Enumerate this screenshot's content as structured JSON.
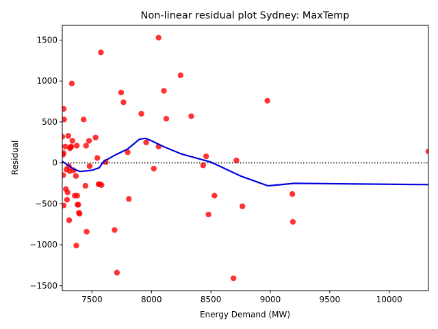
{
  "chart_data": {
    "type": "scatter",
    "title": "Non-linear residual plot Sydney: MaxTemp",
    "xlabel": "Energy Demand (MW)",
    "ylabel": "Residual",
    "xlim": [
      7250,
      10330
    ],
    "ylim": [
      -1560,
      1680
    ],
    "xticks": [
      7500,
      8000,
      8500,
      9000,
      9500,
      10000
    ],
    "yticks": [
      -1500,
      -1000,
      -500,
      0,
      500,
      1000,
      1500
    ],
    "grid": false,
    "legend": "none",
    "colors": {
      "points": "#ff0000",
      "fit_line": "#0000dd",
      "zero_line": "#000000"
    },
    "points": [
      [
        7250,
        320
      ],
      [
        7255,
        100
      ],
      [
        7260,
        120
      ],
      [
        7262,
        660
      ],
      [
        7265,
        530
      ],
      [
        7258,
        -150
      ],
      [
        7262,
        -520
      ],
      [
        7275,
        200
      ],
      [
        7280,
        -320
      ],
      [
        7285,
        -80
      ],
      [
        7290,
        -450
      ],
      [
        7295,
        -360
      ],
      [
        7300,
        330
      ],
      [
        7305,
        -40
      ],
      [
        7308,
        -700
      ],
      [
        7312,
        -100
      ],
      [
        7315,
        180
      ],
      [
        7320,
        190
      ],
      [
        7325,
        200
      ],
      [
        7330,
        970
      ],
      [
        7335,
        270
      ],
      [
        7345,
        -90
      ],
      [
        7355,
        -400
      ],
      [
        7365,
        -160
      ],
      [
        7368,
        -1010
      ],
      [
        7372,
        210
      ],
      [
        7375,
        -400
      ],
      [
        7378,
        -510
      ],
      [
        7385,
        -510
      ],
      [
        7390,
        -610
      ],
      [
        7395,
        -620
      ],
      [
        7430,
        530
      ],
      [
        7445,
        -280
      ],
      [
        7450,
        210
      ],
      [
        7455,
        -840
      ],
      [
        7475,
        270
      ],
      [
        7480,
        -40
      ],
      [
        7530,
        310
      ],
      [
        7545,
        60
      ],
      [
        7555,
        -260
      ],
      [
        7565,
        -260
      ],
      [
        7575,
        1350
      ],
      [
        7580,
        -270
      ],
      [
        7615,
        10
      ],
      [
        7690,
        -820
      ],
      [
        7710,
        -1340
      ],
      [
        7745,
        860
      ],
      [
        7765,
        740
      ],
      [
        7800,
        130
      ],
      [
        7810,
        -440
      ],
      [
        7915,
        600
      ],
      [
        7955,
        250
      ],
      [
        8020,
        -70
      ],
      [
        8060,
        200
      ],
      [
        8060,
        1530
      ],
      [
        8105,
        880
      ],
      [
        8125,
        540
      ],
      [
        8245,
        1070
      ],
      [
        8335,
        570
      ],
      [
        8435,
        -30
      ],
      [
        8460,
        80
      ],
      [
        8480,
        -630
      ],
      [
        8530,
        -400
      ],
      [
        8690,
        -1410
      ],
      [
        8715,
        30
      ],
      [
        8765,
        -530
      ],
      [
        8975,
        760
      ],
      [
        9185,
        -380
      ],
      [
        9190,
        -720
      ],
      [
        10330,
        140
      ]
    ],
    "fit_line": [
      [
        7250,
        20
      ],
      [
        7300,
        -30
      ],
      [
        7350,
        -80
      ],
      [
        7400,
        -105
      ],
      [
        7500,
        -90
      ],
      [
        7560,
        -60
      ],
      [
        7600,
        20
      ],
      [
        7700,
        100
      ],
      [
        7800,
        170
      ],
      [
        7900,
        290
      ],
      [
        7950,
        300
      ],
      [
        8000,
        270
      ],
      [
        8100,
        200
      ],
      [
        8250,
        110
      ],
      [
        8500,
        10
      ],
      [
        8750,
        -160
      ],
      [
        8980,
        -280
      ],
      [
        9200,
        -250
      ],
      [
        10330,
        -265
      ]
    ],
    "zero_line": 0
  }
}
